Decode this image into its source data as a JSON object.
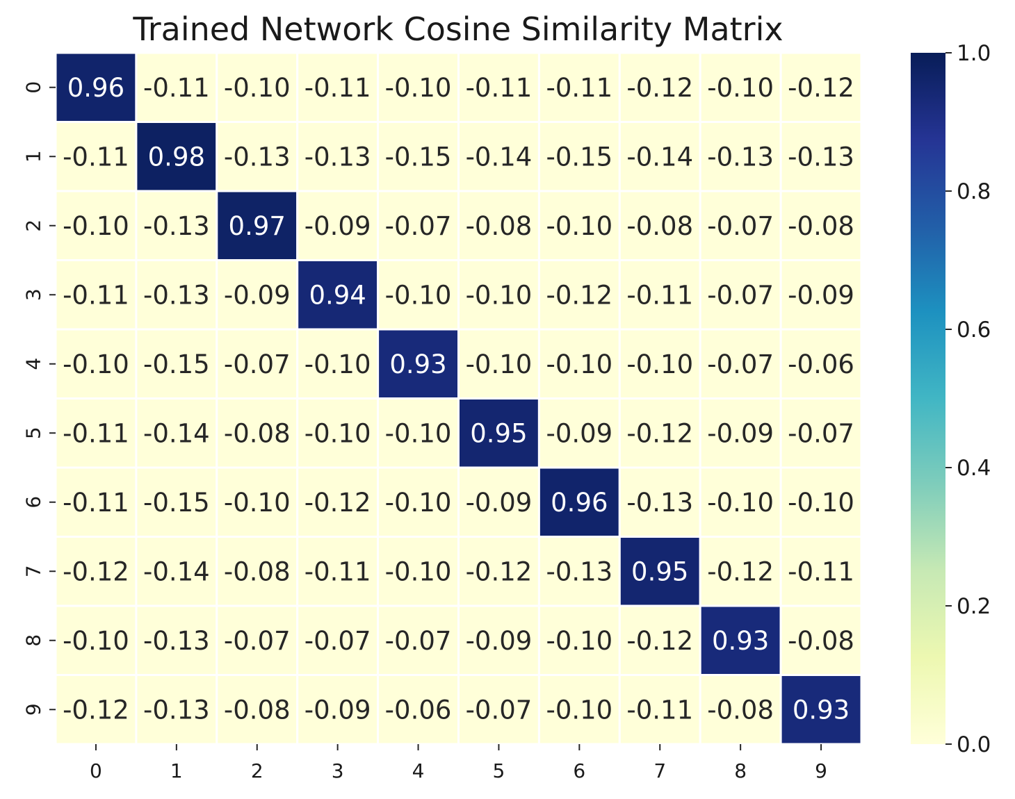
{
  "chart_data": {
    "type": "heatmap",
    "title": "Trained Network Cosine Similarity Matrix",
    "xlabel": "",
    "ylabel": "",
    "x_categories": [
      "0",
      "1",
      "2",
      "3",
      "4",
      "5",
      "6",
      "7",
      "8",
      "9"
    ],
    "y_categories": [
      "0",
      "1",
      "2",
      "3",
      "4",
      "5",
      "6",
      "7",
      "8",
      "9"
    ],
    "values": [
      [
        0.96,
        -0.11,
        -0.1,
        -0.11,
        -0.1,
        -0.11,
        -0.11,
        -0.12,
        -0.1,
        -0.12
      ],
      [
        -0.11,
        0.98,
        -0.13,
        -0.13,
        -0.15,
        -0.14,
        -0.15,
        -0.14,
        -0.13,
        -0.13
      ],
      [
        -0.1,
        -0.13,
        0.97,
        -0.09,
        -0.07,
        -0.08,
        -0.1,
        -0.08,
        -0.07,
        -0.08
      ],
      [
        -0.11,
        -0.13,
        -0.09,
        0.94,
        -0.1,
        -0.1,
        -0.12,
        -0.11,
        -0.07,
        -0.09
      ],
      [
        -0.1,
        -0.15,
        -0.07,
        -0.1,
        0.93,
        -0.1,
        -0.1,
        -0.1,
        -0.07,
        -0.06
      ],
      [
        -0.11,
        -0.14,
        -0.08,
        -0.1,
        -0.1,
        0.95,
        -0.09,
        -0.12,
        -0.09,
        -0.07
      ],
      [
        -0.11,
        -0.15,
        -0.1,
        -0.12,
        -0.1,
        -0.09,
        0.96,
        -0.13,
        -0.1,
        -0.1
      ],
      [
        -0.12,
        -0.14,
        -0.08,
        -0.11,
        -0.1,
        -0.12,
        -0.13,
        0.95,
        -0.12,
        -0.11
      ],
      [
        -0.1,
        -0.13,
        -0.07,
        -0.07,
        -0.07,
        -0.09,
        -0.1,
        -0.12,
        0.93,
        -0.08
      ],
      [
        -0.12,
        -0.13,
        -0.08,
        -0.09,
        -0.06,
        -0.07,
        -0.1,
        -0.11,
        -0.08,
        0.93
      ]
    ],
    "value_format": "2 decimals",
    "colorbar": {
      "min": 0.0,
      "max": 1.0,
      "ticks": [
        "0.0",
        "0.2",
        "0.4",
        "0.6",
        "0.8",
        "1.0"
      ],
      "colormap": "YlGnBu",
      "stops": [
        "#ffffd9",
        "#edf8b1",
        "#c7e9b4",
        "#7fcdbb",
        "#41b6c4",
        "#1d91c0",
        "#225ea8",
        "#253494",
        "#081d58"
      ],
      "placement": "right"
    },
    "grid_line_color": "#ffffff",
    "text_color_dark": "#262626",
    "text_color_light": "#ffffff"
  }
}
